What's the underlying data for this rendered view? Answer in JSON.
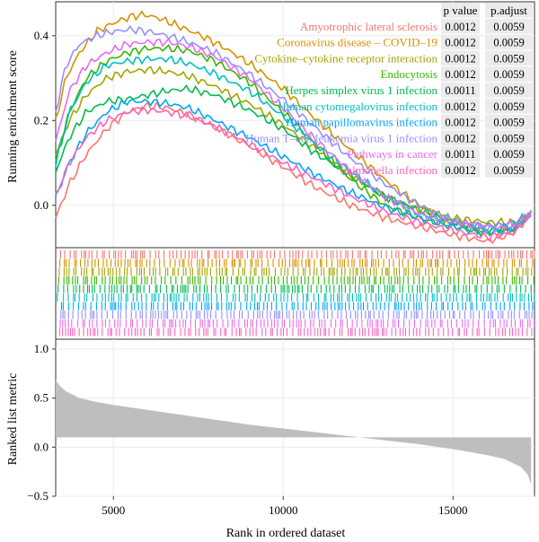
{
  "chart_data": {
    "type": "line",
    "title": "",
    "xlabel": "Rank in ordered dataset",
    "x_ticks": [
      5000,
      10000,
      15000
    ],
    "xlim": [
      3300,
      17400
    ],
    "top_panel": {
      "ylabel": "Running enrichment score",
      "ylim": [
        -0.1,
        0.48
      ],
      "y_ticks": [
        0.0,
        0.2,
        0.4
      ],
      "y_tick_labels": [
        "0.0",
        "0.2",
        "0.4"
      ],
      "series": [
        {
          "name": "Amyotrophic lateral sclerosis",
          "color": "#F8766D",
          "x": [
            3300,
            3700,
            4200,
            4800,
            5400,
            6000,
            6600,
            7200,
            8000,
            9000,
            10000,
            11000,
            12000,
            13000,
            14000,
            15000,
            16000,
            16800,
            17300
          ],
          "y": [
            -0.03,
            0.05,
            0.12,
            0.18,
            0.22,
            0.235,
            0.23,
            0.215,
            0.185,
            0.14,
            0.09,
            0.04,
            0.0,
            -0.03,
            -0.05,
            -0.07,
            -0.085,
            -0.065,
            -0.02
          ]
        },
        {
          "name": "Coronavirus disease – COVID–19",
          "color": "#D89000",
          "x": [
            3300,
            3600,
            4000,
            4500,
            5000,
            5500,
            5900,
            6400,
            7000,
            7600,
            8200,
            9000,
            10000,
            11000,
            12000,
            13000,
            14000,
            15000,
            16000,
            16800,
            17300
          ],
          "y": [
            0.2,
            0.3,
            0.36,
            0.41,
            0.43,
            0.445,
            0.45,
            0.44,
            0.42,
            0.4,
            0.375,
            0.335,
            0.275,
            0.2,
            0.13,
            0.06,
            0.0,
            -0.04,
            -0.06,
            -0.055,
            -0.02
          ]
        },
        {
          "name": "Cytokine–cytokine receptor interaction",
          "color": "#A3A500",
          "x": [
            3300,
            3700,
            4200,
            4800,
            5400,
            6000,
            6600,
            7200,
            8000,
            9000,
            10000,
            11000,
            12000,
            13000,
            14000,
            15000,
            16000,
            16800,
            17300
          ],
          "y": [
            0.12,
            0.2,
            0.26,
            0.3,
            0.315,
            0.32,
            0.315,
            0.305,
            0.28,
            0.24,
            0.19,
            0.13,
            0.07,
            0.02,
            -0.01,
            -0.03,
            -0.04,
            -0.04,
            -0.02
          ]
        },
        {
          "name": "Endocytosis",
          "color": "#39B600",
          "x": [
            3300,
            3700,
            4200,
            4800,
            5400,
            6000,
            6600,
            7200,
            8000,
            9000,
            10000,
            11000,
            12000,
            13000,
            14000,
            15000,
            16000,
            16800,
            17300
          ],
          "y": [
            0.1,
            0.22,
            0.3,
            0.34,
            0.36,
            0.37,
            0.37,
            0.365,
            0.34,
            0.29,
            0.22,
            0.14,
            0.06,
            0.0,
            -0.03,
            -0.05,
            -0.065,
            -0.055,
            -0.02
          ]
        },
        {
          "name": "Herpes simplex virus 1 infection",
          "color": "#00BB4E",
          "x": [
            3300,
            3700,
            4200,
            4800,
            5400,
            6000,
            6600,
            7200,
            8000,
            9000,
            10000,
            11000,
            12000,
            13000,
            14000,
            15000,
            16000,
            16800,
            17300
          ],
          "y": [
            0.08,
            0.16,
            0.22,
            0.245,
            0.25,
            0.26,
            0.27,
            0.275,
            0.26,
            0.225,
            0.18,
            0.12,
            0.07,
            0.02,
            -0.01,
            -0.04,
            -0.06,
            -0.05,
            -0.02
          ]
        },
        {
          "name": "Human cytomegalovirus infection",
          "color": "#00BFC4",
          "x": [
            3300,
            3700,
            4200,
            4800,
            5400,
            6000,
            6600,
            7200,
            8000,
            9000,
            10000,
            11000,
            12000,
            13000,
            14000,
            15000,
            16000,
            16800,
            17300
          ],
          "y": [
            0.1,
            0.22,
            0.29,
            0.33,
            0.34,
            0.345,
            0.345,
            0.335,
            0.31,
            0.27,
            0.21,
            0.14,
            0.08,
            0.02,
            -0.02,
            -0.04,
            -0.05,
            -0.04,
            -0.02
          ]
        },
        {
          "name": "Human papillomavirus infection",
          "color": "#00A5FF",
          "x": [
            3300,
            3700,
            4200,
            4800,
            5400,
            6000,
            6600,
            7200,
            8000,
            9000,
            10000,
            11000,
            12000,
            13000,
            14000,
            15000,
            16000,
            16800,
            17300
          ],
          "y": [
            0.02,
            0.1,
            0.17,
            0.22,
            0.245,
            0.245,
            0.24,
            0.23,
            0.2,
            0.16,
            0.115,
            0.07,
            0.03,
            -0.005,
            -0.03,
            -0.05,
            -0.065,
            -0.055,
            -0.02
          ]
        },
        {
          "name": "Human T–cell leukemia virus 1 infection",
          "color": "#9590FF",
          "x": [
            3300,
            3600,
            4000,
            4500,
            5000,
            5500,
            6000,
            6600,
            7200,
            8000,
            9000,
            10000,
            11000,
            12000,
            13000,
            14000,
            15000,
            16000,
            16800,
            17300
          ],
          "y": [
            0.22,
            0.33,
            0.38,
            0.4,
            0.41,
            0.415,
            0.41,
            0.4,
            0.385,
            0.36,
            0.31,
            0.25,
            0.18,
            0.11,
            0.05,
            0.0,
            -0.035,
            -0.055,
            -0.05,
            -0.02
          ]
        },
        {
          "name": "Pathways in cancer",
          "color": "#E76BF3",
          "x": [
            3300,
            3700,
            4200,
            4800,
            5400,
            6000,
            6600,
            7200,
            8000,
            9000,
            10000,
            11000,
            12000,
            13000,
            14000,
            15000,
            16000,
            16800,
            17300
          ],
          "y": [
            0.15,
            0.27,
            0.33,
            0.36,
            0.38,
            0.385,
            0.385,
            0.375,
            0.35,
            0.3,
            0.23,
            0.15,
            0.08,
            0.02,
            -0.02,
            -0.04,
            -0.05,
            -0.045,
            -0.02
          ]
        },
        {
          "name": "Salmonella infection",
          "color": "#FF62BC",
          "x": [
            3300,
            3700,
            4200,
            4800,
            5400,
            6000,
            6600,
            7200,
            8000,
            9000,
            10000,
            11000,
            12000,
            13000,
            14000,
            15000,
            16000,
            16800,
            17300
          ],
          "y": [
            0.02,
            0.1,
            0.16,
            0.2,
            0.22,
            0.225,
            0.22,
            0.21,
            0.185,
            0.145,
            0.1,
            0.06,
            0.02,
            -0.015,
            -0.04,
            -0.06,
            -0.075,
            -0.065,
            -0.02
          ]
        }
      ]
    },
    "bottom_panel": {
      "ylabel": "Ranked list metric",
      "ylim": [
        -0.5,
        1.1
      ],
      "y_ticks": [
        -0.5,
        0.0,
        0.5,
        1.0
      ],
      "y_tick_labels": [
        "−0.5",
        "0.0",
        "0.5",
        "1.0"
      ],
      "baseline": 0.1,
      "fill_color": "#BEBEBE",
      "metric": {
        "x": [
          3300,
          3400,
          3600,
          4000,
          4500,
          5000,
          6000,
          7000,
          8000,
          9000,
          10000,
          11000,
          12000,
          13000,
          14000,
          15000,
          15500,
          16000,
          16500,
          17000,
          17200,
          17300
        ],
        "y": [
          0.69,
          0.63,
          0.57,
          0.5,
          0.46,
          0.43,
          0.38,
          0.33,
          0.28,
          0.23,
          0.19,
          0.15,
          0.11,
          0.07,
          0.03,
          -0.02,
          -0.05,
          -0.08,
          -0.12,
          -0.2,
          -0.28,
          -0.38
        ]
      }
    },
    "table": {
      "columns": [
        "p value",
        "p.adjust"
      ],
      "rows": [
        [
          "0.0012",
          "0.0059"
        ],
        [
          "0.0012",
          "0.0059"
        ],
        [
          "0.0012",
          "0.0059"
        ],
        [
          "0.0012",
          "0.0059"
        ],
        [
          "0.0011",
          "0.0059"
        ],
        [
          "0.0012",
          "0.0059"
        ],
        [
          "0.0012",
          "0.0059"
        ],
        [
          "0.0012",
          "0.0059"
        ],
        [
          "0.0011",
          "0.0059"
        ],
        [
          "0.0012",
          "0.0059"
        ]
      ]
    }
  },
  "colors": {
    "panel_background": "#FFFFFF",
    "grid": "#EBEBEB",
    "table_cell": "#EBEBEB",
    "axis_text": "#000000"
  }
}
